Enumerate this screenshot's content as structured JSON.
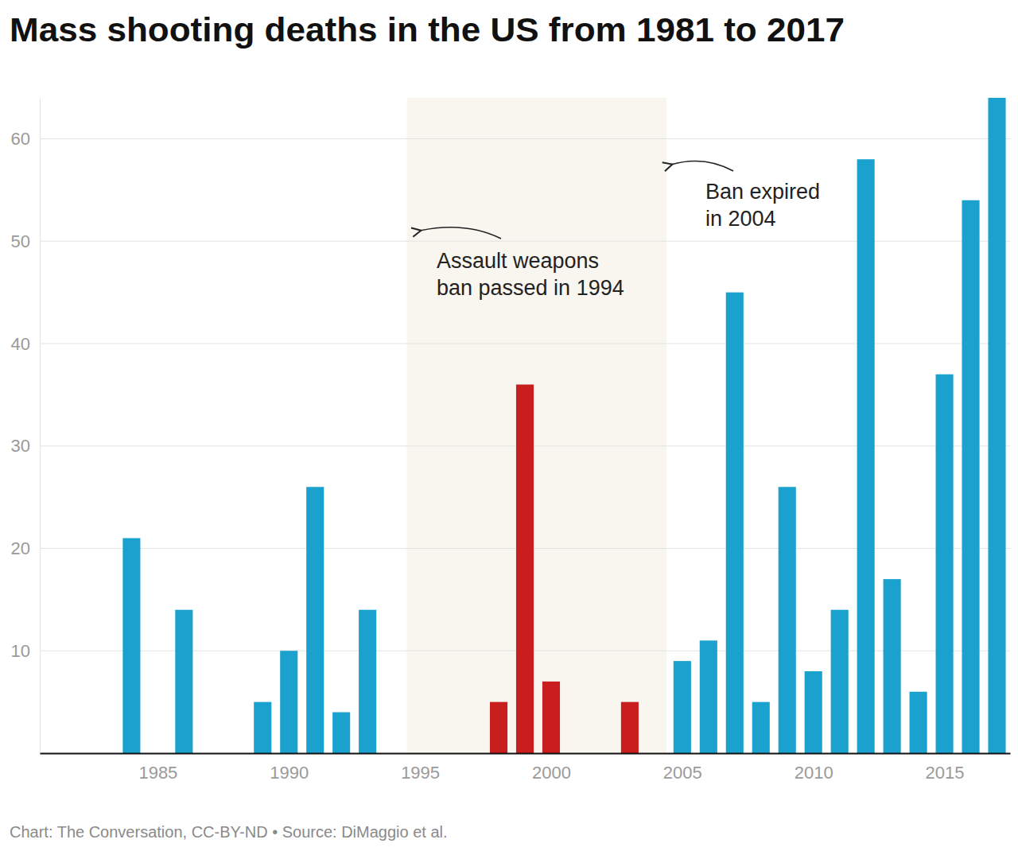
{
  "chart_data": {
    "type": "bar",
    "title": "Mass shooting deaths in the US from 1981 to 2017",
    "source": "Chart: The Conversation, CC-BY-ND • Source: DiMaggio et al.",
    "x": [
      1984,
      1986,
      1989,
      1990,
      1991,
      1992,
      1993,
      1998,
      1999,
      2000,
      2003,
      2005,
      2006,
      2007,
      2008,
      2009,
      2010,
      2011,
      2012,
      2013,
      2014,
      2015,
      2016,
      2017
    ],
    "values": [
      21,
      14,
      5,
      10,
      26,
      4,
      14,
      5,
      36,
      7,
      5,
      9,
      11,
      45,
      5,
      26,
      8,
      14,
      58,
      17,
      6,
      37,
      54,
      64
    ],
    "colors": [
      "#1ba1cd",
      "#1ba1cd",
      "#1ba1cd",
      "#1ba1cd",
      "#1ba1cd",
      "#1ba1cd",
      "#1ba1cd",
      "#c81e1e",
      "#c81e1e",
      "#c81e1e",
      "#c81e1e",
      "#1ba1cd",
      "#1ba1cd",
      "#1ba1cd",
      "#1ba1cd",
      "#1ba1cd",
      "#1ba1cd",
      "#1ba1cd",
      "#1ba1cd",
      "#1ba1cd",
      "#1ba1cd",
      "#1ba1cd",
      "#1ba1cd",
      "#1ba1cd"
    ],
    "xlim": [
      1980.5,
      2017.5
    ],
    "xticks": [
      1985,
      1990,
      1995,
      2000,
      2005,
      2010,
      2015
    ],
    "ylim": [
      0,
      64
    ],
    "yticks": [
      10,
      20,
      30,
      40,
      50,
      60
    ],
    "grid": true,
    "shaded_range": [
      1994.5,
      2004.4
    ],
    "annotations": [
      {
        "lines": [
          "Assault weapons",
          "ban passed in 1994"
        ]
      },
      {
        "lines": [
          "Ban expired",
          "in 2004"
        ]
      }
    ]
  }
}
